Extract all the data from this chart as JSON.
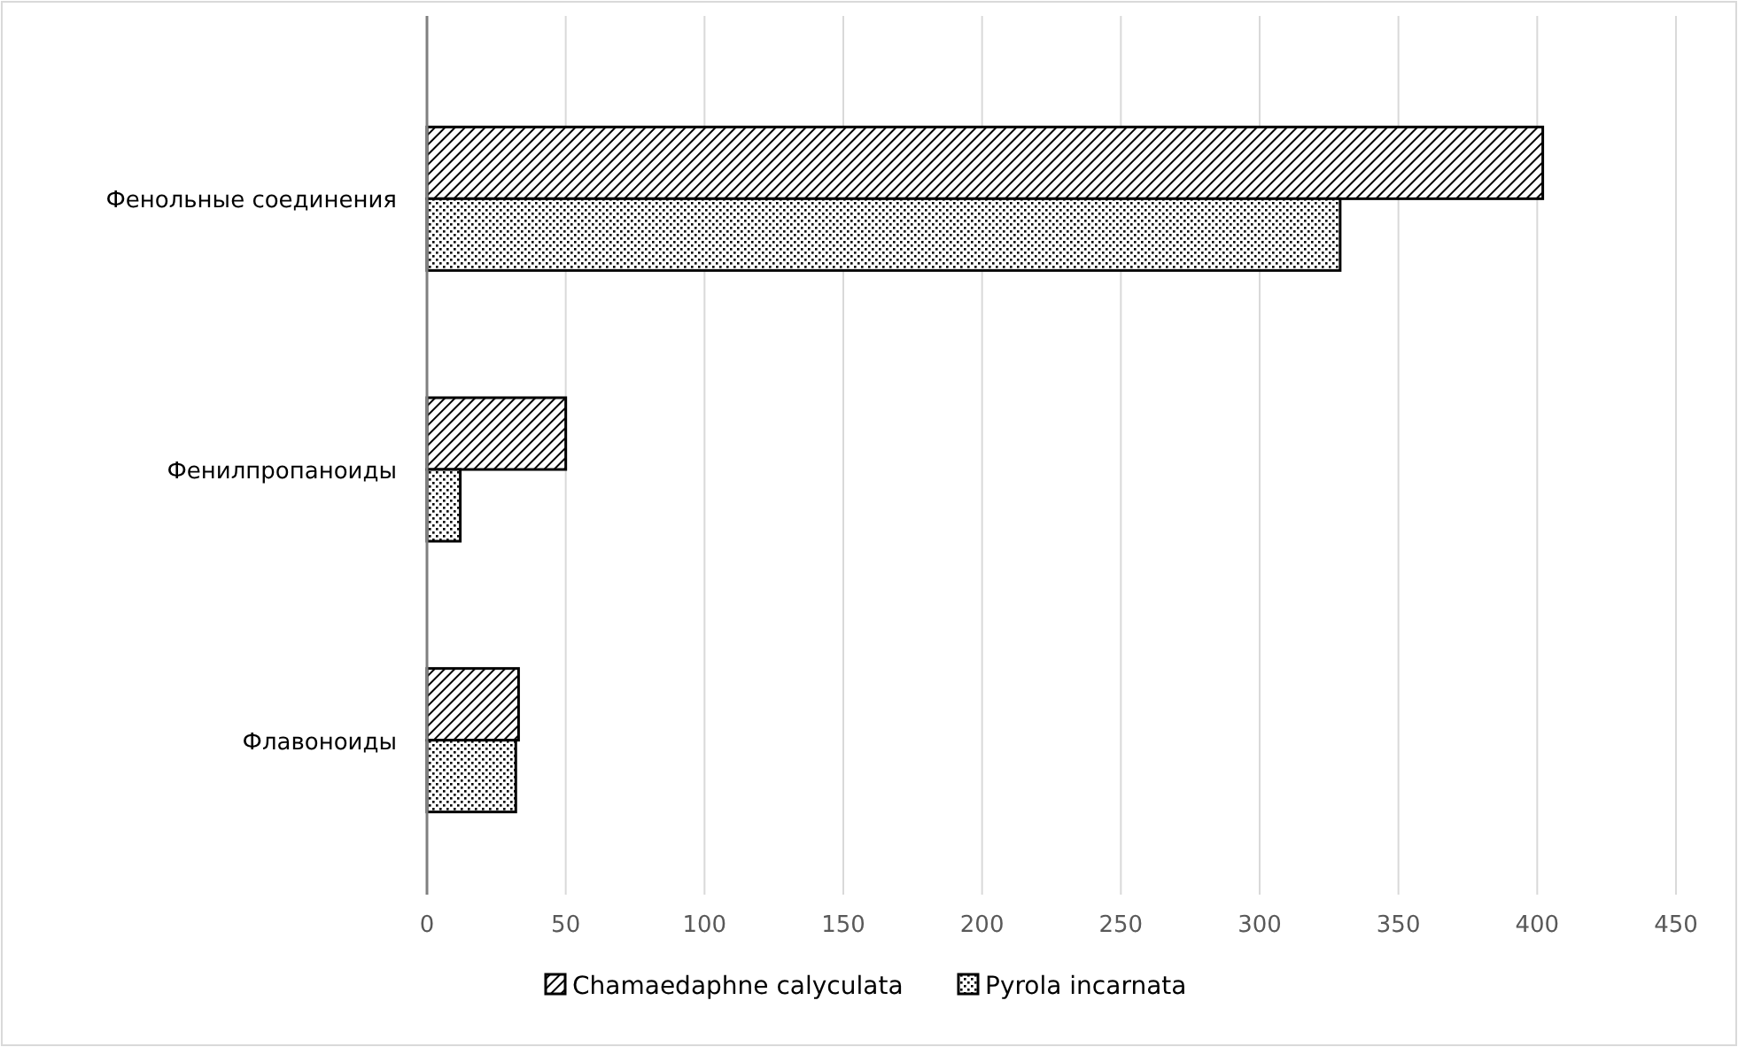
{
  "chart_data": {
    "type": "bar",
    "orientation": "horizontal",
    "categories": [
      "Фенольные соединения",
      "Фенилпропаноиды",
      "Флавоноиды"
    ],
    "series": [
      {
        "name": "Chamaedaphne calyculata",
        "color": "#000000",
        "values": [
          402,
          50,
          33
        ]
      },
      {
        "name": "Pyrola incarnata",
        "color": "#000000",
        "values": [
          329,
          12,
          32
        ]
      }
    ],
    "xlim": [
      0,
      450
    ],
    "xticks": [
      0,
      50,
      100,
      150,
      200,
      250,
      300,
      350,
      400,
      450
    ],
    "grid": "x",
    "legend": "bottom"
  }
}
